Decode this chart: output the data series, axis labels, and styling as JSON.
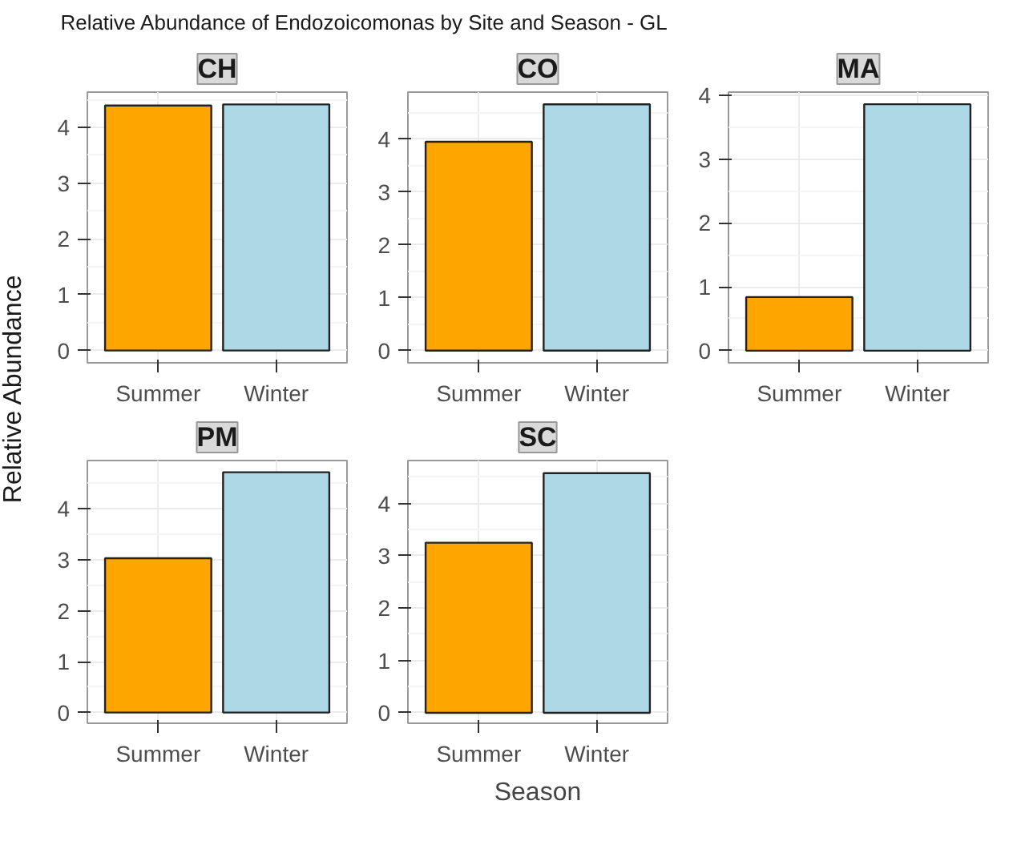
{
  "chart_data": [
    {
      "type": "bar",
      "title": "CH",
      "annotations": [
        "Relative Abundance of Endozoicomonas by Site and Season - GL"
      ],
      "categories": [
        "Summer",
        "Winter"
      ],
      "values": [
        4.39,
        4.41
      ],
      "colors": [
        "#ffa500",
        "#add8e6"
      ],
      "ylim": [
        -0.22,
        4.63
      ],
      "yticks": [
        0,
        1,
        2,
        3,
        4
      ],
      "grid": true
    },
    {
      "type": "bar",
      "title": "CO",
      "categories": [
        "Summer",
        "Winter"
      ],
      "values": [
        3.95,
        4.66
      ],
      "colors": [
        "#ffa500",
        "#add8e6"
      ],
      "ylim": [
        -0.23,
        4.89
      ],
      "yticks": [
        0,
        1,
        2,
        3,
        4
      ],
      "grid": true
    },
    {
      "type": "bar",
      "title": "MA",
      "categories": [
        "Summer",
        "Winter"
      ],
      "values": [
        0.84,
        3.86
      ],
      "colors": [
        "#ffa500",
        "#add8e6"
      ],
      "ylim": [
        -0.19,
        4.05
      ],
      "yticks": [
        0,
        1,
        2,
        3,
        4
      ],
      "grid": true
    },
    {
      "type": "bar",
      "title": "PM",
      "ylabel": "Relative Abundance",
      "categories": [
        "Summer",
        "Winter"
      ],
      "values": [
        3.03,
        4.72
      ],
      "colors": [
        "#ffa500",
        "#add8e6"
      ],
      "ylim": [
        -0.21,
        4.95
      ],
      "yticks": [
        0,
        1,
        2,
        3,
        4
      ],
      "grid": true
    },
    {
      "type": "bar",
      "title": "SC",
      "xlabel": "Season",
      "categories": [
        "Summer",
        "Winter"
      ],
      "values": [
        3.25,
        4.58
      ],
      "colors": [
        "#ffa500",
        "#add8e6"
      ],
      "ylim": [
        -0.2,
        4.82
      ],
      "yticks": [
        0,
        1,
        2,
        3,
        4
      ],
      "grid": true
    }
  ]
}
